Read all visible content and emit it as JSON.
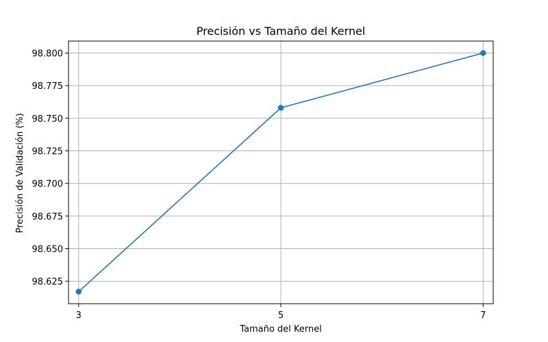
{
  "chart_data": {
    "type": "line",
    "title": "Precisión vs Tamaño del Kernel",
    "xlabel": "Tamaño del Kernel",
    "ylabel": "Precisión de Validación (%)",
    "x": [
      3,
      5,
      7
    ],
    "series": [
      {
        "values": [
          98.617,
          98.758,
          98.8
        ]
      }
    ],
    "x_ticks": [
      "3",
      "5",
      "7"
    ],
    "y_ticks": [
      "98.625",
      "98.650",
      "98.675",
      "98.700",
      "98.725",
      "98.750",
      "98.775",
      "98.800"
    ],
    "xlim": [
      2.9,
      7.1
    ],
    "ylim": [
      98.6078,
      98.8092
    ],
    "grid": true,
    "line_color": "#1f77b4"
  }
}
